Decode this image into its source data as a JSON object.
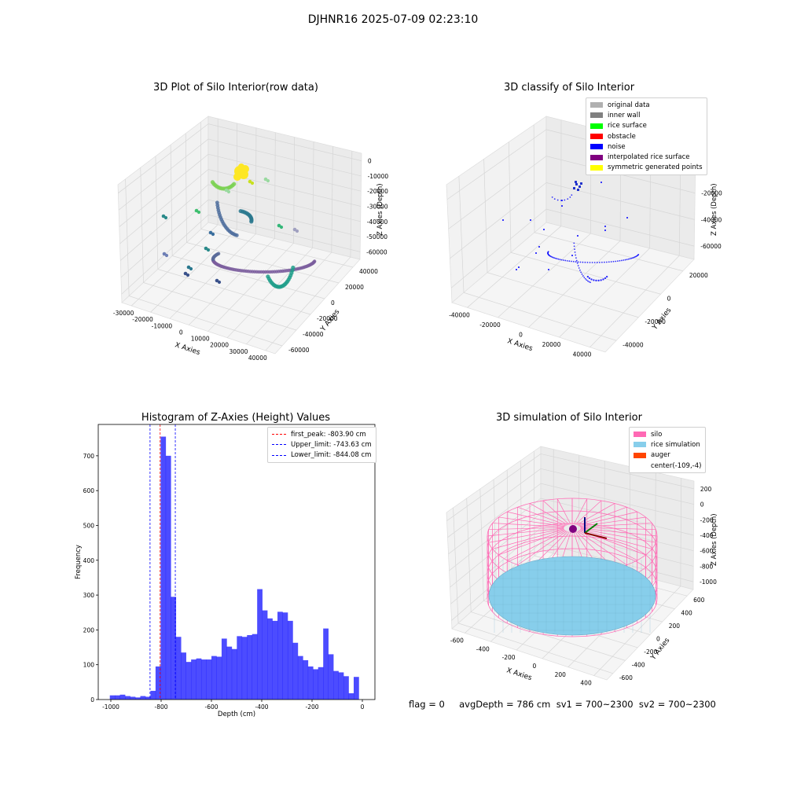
{
  "suptitle": "DJHNR16 2025-07-09 02:23:10",
  "footer": "flag = 0     avgDepth = 786 cm  sv1 = 700~2300  sv2 = 700~2300",
  "chart_data": [
    {
      "type": "scatter",
      "title": "3D Plot of Silo Interior(row data)",
      "xlabel": "X Axies",
      "ylabel": "Y Axies",
      "zlabel": "Z Axies (Depth)",
      "xticks": [
        "-30000",
        "-20000",
        "-10000",
        "0",
        "10000",
        "20000",
        "30000",
        "40000"
      ],
      "yticks": [
        "-60000",
        "-40000",
        "-20000",
        "0",
        "20000",
        "40000"
      ],
      "zticks": [
        "0",
        "-10000",
        "-20000",
        "-30000",
        "-40000",
        "-50000",
        "-60000"
      ]
    },
    {
      "type": "scatter",
      "title": "3D classify of Silo Interior",
      "xlabel": "X Axies",
      "ylabel": "Y Axies",
      "zlabel": "Z Axies (Depth)",
      "xticks": [
        "-40000",
        "-20000",
        "0",
        "20000",
        "40000"
      ],
      "yticks": [
        "-40000",
        "-20000",
        "0",
        "20000"
      ],
      "zticks": [
        "0",
        "-20000",
        "-40000",
        "-60000"
      ],
      "legend": [
        {
          "label": "original data",
          "color": "#b0b0b0"
        },
        {
          "label": "inner wall",
          "color": "#808080"
        },
        {
          "label": "rice surface",
          "color": "#00ff00"
        },
        {
          "label": "obstacle",
          "color": "#ff0000"
        },
        {
          "label": "noise",
          "color": "#0000ff"
        },
        {
          "label": "interpolated rice surface",
          "color": "#800080"
        },
        {
          "label": "symmetric generated points",
          "color": "#ffff00"
        }
      ]
    },
    {
      "type": "bar",
      "title": "Histogram of Z-Axies (Height) Values",
      "xlabel": "Depth (cm)",
      "ylabel": "Frequency",
      "xlim": [
        -1050,
        50
      ],
      "ylim": [
        0,
        790
      ],
      "xticks": [
        -1000,
        -800,
        -600,
        -400,
        -200,
        0
      ],
      "yticks": [
        0,
        100,
        200,
        300,
        400,
        500,
        600,
        700
      ],
      "bin_start": -1004,
      "bin_width": 20.2,
      "values": [
        12,
        12,
        14,
        10,
        8,
        6,
        10,
        8,
        25,
        95,
        755,
        700,
        295,
        180,
        135,
        108,
        115,
        118,
        115,
        115,
        125,
        123,
        175,
        152,
        145,
        182,
        180,
        185,
        188,
        317,
        256,
        233,
        226,
        252,
        250,
        226,
        163,
        125,
        113,
        95,
        87,
        93,
        204,
        130,
        82,
        78,
        67,
        18,
        65
      ],
      "bar_color": "#0000ff",
      "vlines": [
        {
          "label": "first_peak: -803.90 cm",
          "x": -803.9,
          "color": "#ff0000"
        },
        {
          "label": "Upper_limit: -743.63 cm",
          "x": -743.63,
          "color": "#0000ff"
        },
        {
          "label": "Lower_limit: -844.08 cm",
          "x": -844.08,
          "color": "#0000ff"
        }
      ]
    },
    {
      "type": "scatter",
      "title": "3D simulation of Silo Interior",
      "xlabel": "X Axies",
      "ylabel": "Y Axies",
      "zlabel": "Z Axies (Depth)",
      "xticks": [
        "-600",
        "-400",
        "-200",
        "0",
        "200",
        "400"
      ],
      "yticks": [
        "-600",
        "-400",
        "-200",
        "0",
        "200",
        "400",
        "600"
      ],
      "zticks": [
        "200",
        "0",
        "-200",
        "-400",
        "-600",
        "-800",
        "-1000"
      ],
      "legend": [
        {
          "label": "silo",
          "color": "#ff69b4"
        },
        {
          "label": "rice simulation",
          "color": "#87ceeb"
        },
        {
          "label": "auger",
          "color": "#ff4500"
        },
        {
          "label": "center(-109,-4)",
          "color": ""
        }
      ]
    }
  ]
}
